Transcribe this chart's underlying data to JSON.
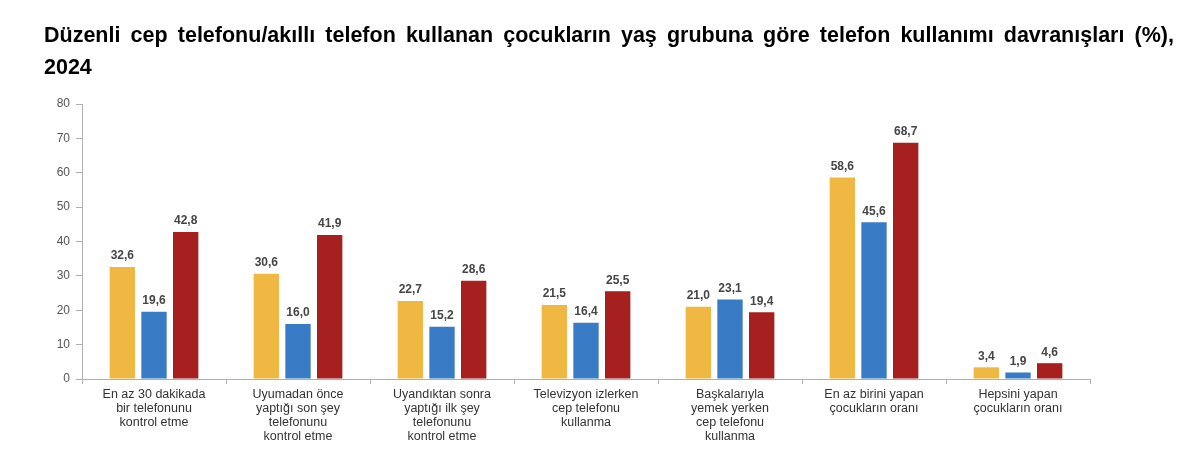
{
  "chart_data": {
    "type": "bar",
    "title": "Düzenli cep telefonu/akıllı telefon kullanan çocukların yaş grubuna göre telefon kullanımı davranışları (%), 2024",
    "categories": [
      "En az 30 dakikada\nbir telefonunu\nkontrol etme",
      "Uyumadan önce\nyaptığı son şey\ntelefonunu\nkontrol etme",
      "Uyandıktan sonra\nyaptığı ilk şey\ntelefonunu\nkontrol etme",
      "Televizyon izlerken\ncep telefonu\nkullanma",
      "Başkalarıyla\nyemek yerken\ncep telefonu\nkullanma",
      "En az birini yapan\nçocukların oranı",
      "Hepsini yapan\nçocukların oranı"
    ],
    "series": [
      {
        "color": "#f0b843",
        "values": [
          32.6,
          30.6,
          22.7,
          21.5,
          21.0,
          58.6,
          3.4
        ],
        "value_labels": [
          "32,6",
          "30,6",
          "22,7",
          "21,5",
          "21,0",
          "58,6",
          "3,4"
        ]
      },
      {
        "color": "#3a7bc6",
        "values": [
          19.6,
          16.0,
          15.2,
          16.4,
          23.1,
          45.6,
          1.9
        ],
        "value_labels": [
          "19,6",
          "16,0",
          "15,2",
          "16,4",
          "23,1",
          "45,6",
          "1,9"
        ]
      },
      {
        "color": "#a5201e",
        "values": [
          42.8,
          41.9,
          28.6,
          25.5,
          19.4,
          68.7,
          4.6
        ],
        "value_labels": [
          "42,8",
          "41,9",
          "28,6",
          "25,5",
          "19,4",
          "68,7",
          "4,6"
        ]
      }
    ],
    "ylim": [
      0,
      80
    ],
    "yticks": [
      0,
      10,
      20,
      30,
      40,
      50,
      60,
      70,
      80
    ]
  }
}
